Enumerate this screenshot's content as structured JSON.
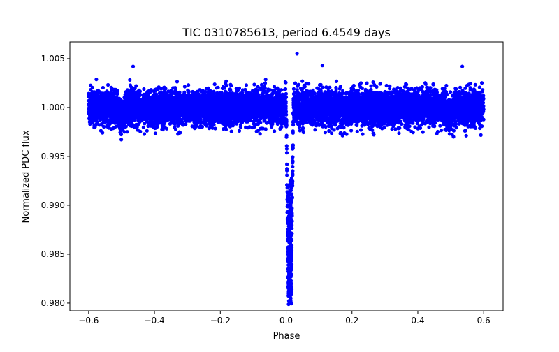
{
  "chart_data": {
    "type": "scatter",
    "title": "TIC 0310785613, period 6.4549 days",
    "xlabel": "Phase",
    "ylabel": "Normalized PDC flux",
    "xlim": [
      -0.657,
      0.659
    ],
    "ylim": [
      0.97921,
      1.00671
    ],
    "xticks": [
      -0.6,
      -0.4,
      -0.2,
      0.0,
      0.2,
      0.4,
      0.6
    ],
    "xtick_labels": [
      "−0.6",
      "−0.4",
      "−0.2",
      "0.0",
      "0.2",
      "0.4",
      "0.6"
    ],
    "yticks": [
      0.98,
      0.985,
      0.99,
      0.995,
      1.0,
      1.005
    ],
    "ytick_labels": [
      "0.980",
      "0.985",
      "0.990",
      "0.995",
      "1.000",
      "1.005"
    ],
    "grid": false,
    "marker_color": "#0000ff",
    "series": [
      {
        "name": "PDC flux",
        "model": {
          "phase_range": [
            -0.6,
            0.6
          ],
          "n_points": 9000,
          "baseline": 1.0,
          "noise_sigma": 0.0009,
          "transit_center_phase": 0.011,
          "transit_depth": 0.0185,
          "transit_half_width_phase": 0.011,
          "secondary_phases": [
            -0.5,
            0.5
          ],
          "secondary_depth": 0.0008,
          "secondary_half_width_phase": 0.012
        },
        "notable_points": [
          {
            "x": 0.033,
            "y": 1.0055
          },
          {
            "x": 0.11,
            "y": 1.0043
          },
          {
            "x": -0.465,
            "y": 1.0042
          },
          {
            "x": 0.535,
            "y": 1.0042
          },
          {
            "x": 0.014,
            "y": 0.9805
          },
          {
            "x": 0.009,
            "y": 0.9808
          }
        ]
      }
    ]
  }
}
